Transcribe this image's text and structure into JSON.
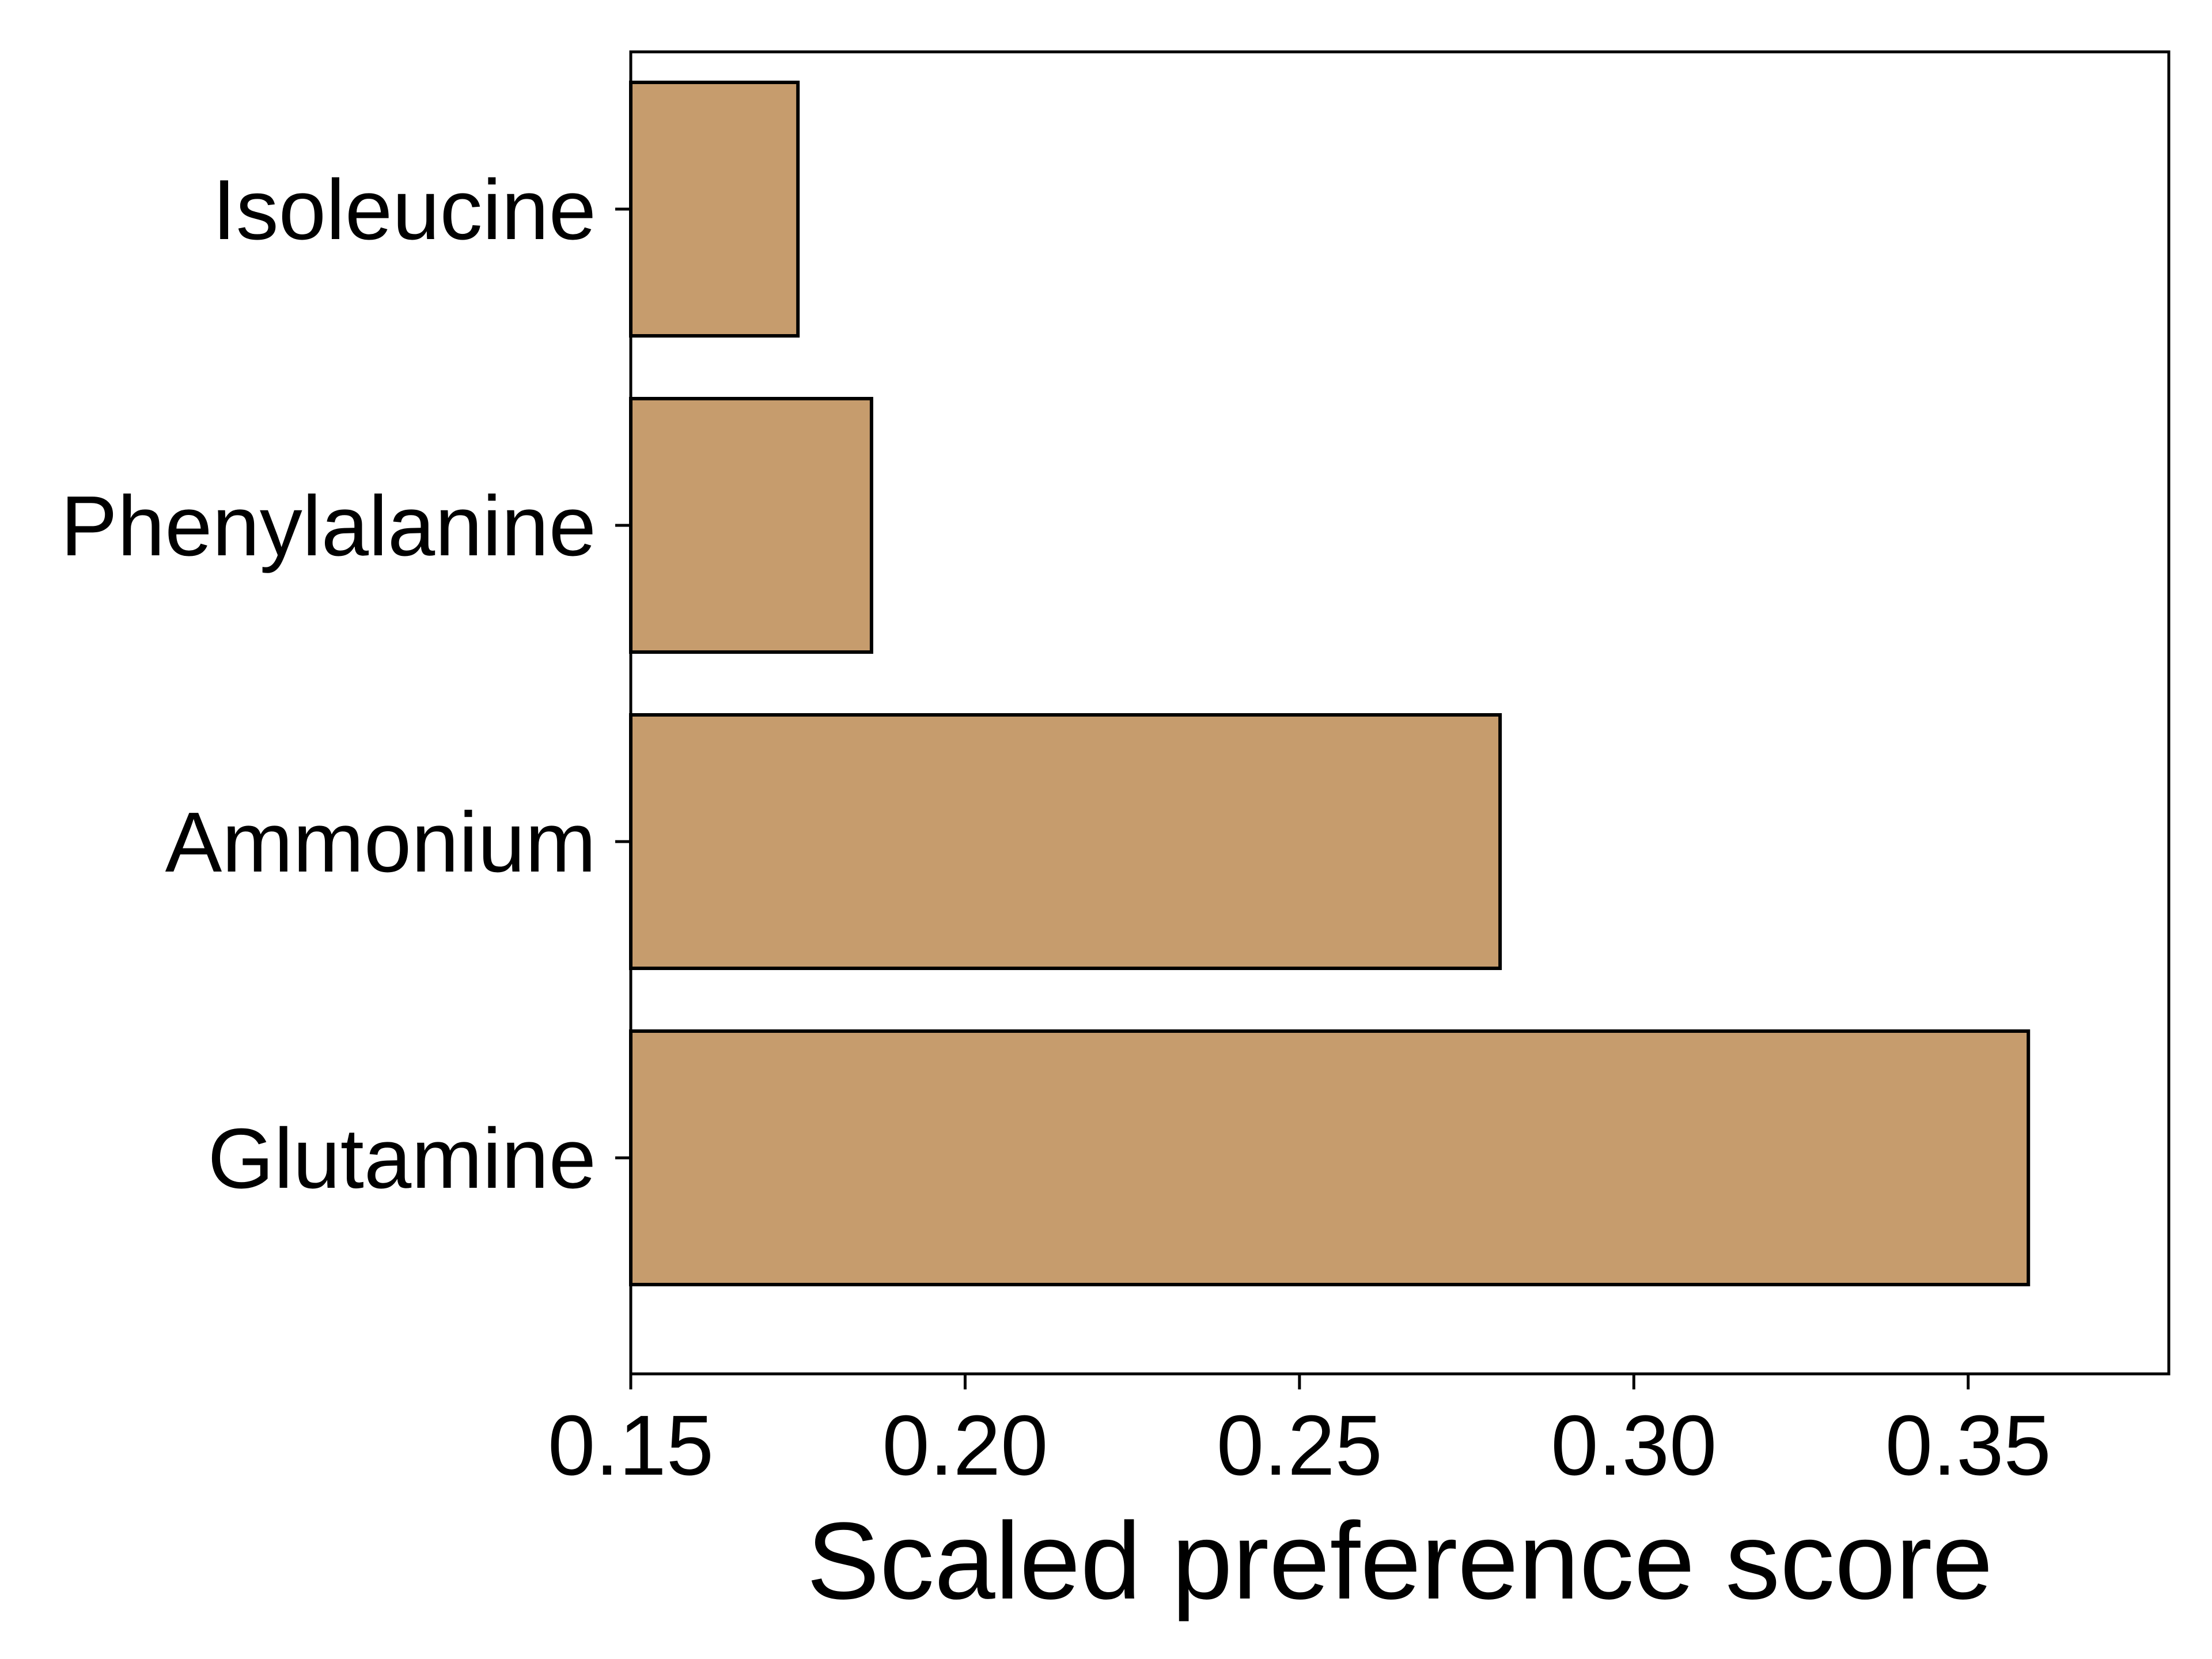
{
  "chart_data": {
    "type": "bar",
    "orientation": "horizontal",
    "categories": [
      "Isoleucine",
      "Phenylalanine",
      "Ammonium",
      "Glutamine"
    ],
    "values": [
      0.175,
      0.186,
      0.28,
      0.359
    ],
    "title": "",
    "xlabel": "Scaled preference score",
    "ylabel": "",
    "xlim": [
      0.15,
      0.38
    ],
    "xticks": [
      0.15,
      0.2,
      0.25,
      0.3,
      0.35
    ],
    "xtick_labels": [
      "0.15",
      "0.20",
      "0.25",
      "0.30",
      "0.35"
    ],
    "grid": false,
    "legend": "none",
    "bar_color": "#c69c6d",
    "edge_color": "#000000"
  }
}
